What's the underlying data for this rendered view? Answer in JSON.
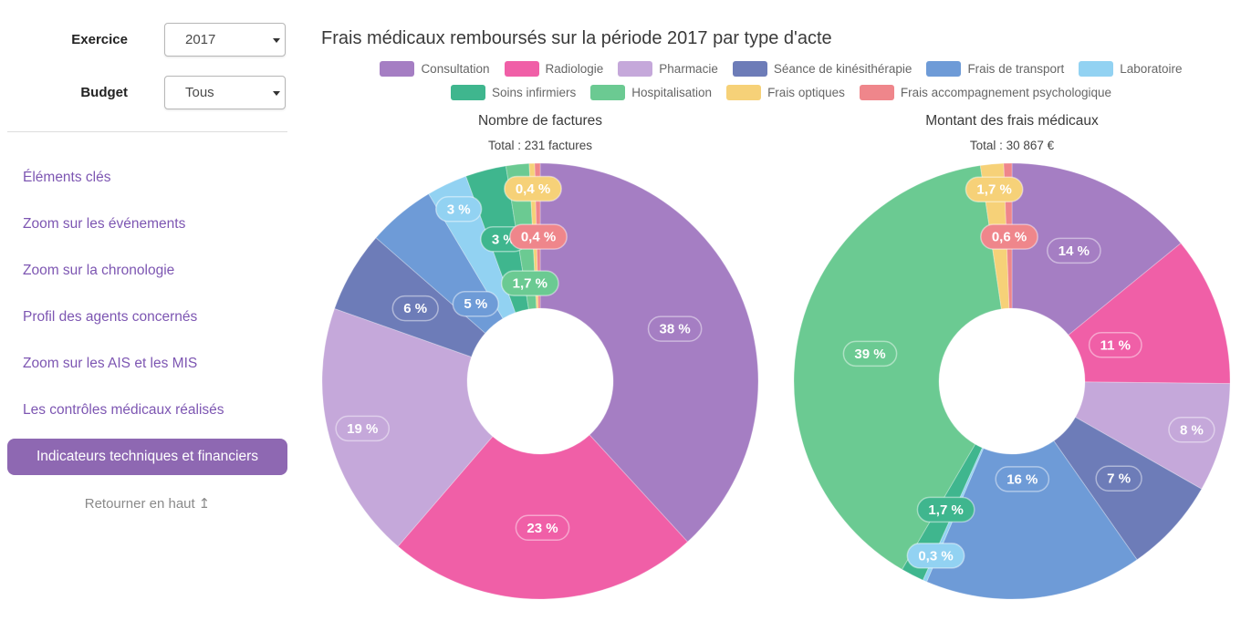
{
  "sidebar": {
    "controls": [
      {
        "label": "Exercice",
        "value": "2017"
      },
      {
        "label": "Budget",
        "value": "Tous"
      }
    ],
    "links": [
      "Éléments clés",
      "Zoom sur les événements",
      "Zoom sur la chronologie",
      "Profil des agents concernés",
      "Zoom sur les AIS et les MIS",
      "Les contrôles médicaux réalisés"
    ],
    "active_item": "Indicateurs techniques et financiers",
    "back_to_top": "Retourner en haut",
    "back_to_top_icon": "↥",
    "link_color": "#7d56b2",
    "active_bg": "#8e68b2"
  },
  "header": {
    "title": "Frais médicaux remboursés sur la période 2017 par type d'acte"
  },
  "legend": {
    "position": "top",
    "items": [
      {
        "label": "Consultation",
        "color": "#a57ec3"
      },
      {
        "label": "Radiologie",
        "color": "#f05fa7"
      },
      {
        "label": "Pharmacie",
        "color": "#c5a8da"
      },
      {
        "label": "Séance de kinésithérapie",
        "color": "#6d7cb8"
      },
      {
        "label": "Frais de transport",
        "color": "#6e9bd7"
      },
      {
        "label": "Laboratoire",
        "color": "#92d2f2"
      },
      {
        "label": "Soins infirmiers",
        "color": "#3fb68e"
      },
      {
        "label": "Hospitalisation",
        "color": "#6bca92"
      },
      {
        "label": "Frais optiques",
        "color": "#f6d178"
      },
      {
        "label": "Frais accompagnement psychologique",
        "color": "#ef868b"
      }
    ],
    "rows": [
      [
        0,
        1,
        2,
        3,
        4,
        5
      ],
      [
        6,
        7,
        8,
        9
      ]
    ]
  },
  "chart_data": [
    {
      "type": "pie",
      "subtype": "donut",
      "title": "Nombre de factures",
      "subtitle": "Total : 231 factures",
      "total": "231 factures",
      "categories": [
        "Consultation",
        "Radiologie",
        "Pharmacie",
        "Séance de kinésithérapie",
        "Frais de transport",
        "Laboratoire",
        "Soins infirmiers",
        "Hospitalisation",
        "Frais optiques",
        "Frais accompagnement psychologique"
      ],
      "values": [
        38,
        23,
        19,
        6,
        5,
        3,
        3,
        1.7,
        0.4,
        0.4
      ],
      "labels": [
        "38 %",
        "23 %",
        "19 %",
        "6 %",
        "5 %",
        "3 %",
        "3 %",
        "1,7 %",
        "0,4 %",
        "0,4 %"
      ],
      "label_r": [
        0.66,
        0.67,
        0.84,
        0.66,
        0.46,
        0.87,
        0.67,
        0.45,
        0.88,
        0.66
      ],
      "start_angle": 0,
      "direction": "clockwise",
      "unit": "%"
    },
    {
      "type": "pie",
      "subtype": "donut",
      "title": "Montant des frais médicaux",
      "subtitle": "Total : 30 867 €",
      "total": "30 867 €",
      "categories": [
        "Consultation",
        "Radiologie",
        "Pharmacie",
        "Séance de kinésithérapie",
        "Frais de transport",
        "Laboratoire",
        "Soins infirmiers",
        "Hospitalisation",
        "Frais optiques",
        "Frais accompagnement psychologique"
      ],
      "values": [
        14,
        11,
        8,
        7,
        16,
        0.3,
        1.7,
        39,
        1.7,
        0.6
      ],
      "labels": [
        "14 %",
        "11 %",
        "8 %",
        "7 %",
        "16 %",
        "0,3 %",
        "1,7 %",
        "39 %",
        "1,7 %",
        "0,6 %"
      ],
      "label_r": [
        0.66,
        0.5,
        0.85,
        0.66,
        0.45,
        0.87,
        0.66,
        0.66,
        0.88,
        0.66
      ],
      "start_angle": 0,
      "direction": "clockwise",
      "unit": "%"
    }
  ]
}
